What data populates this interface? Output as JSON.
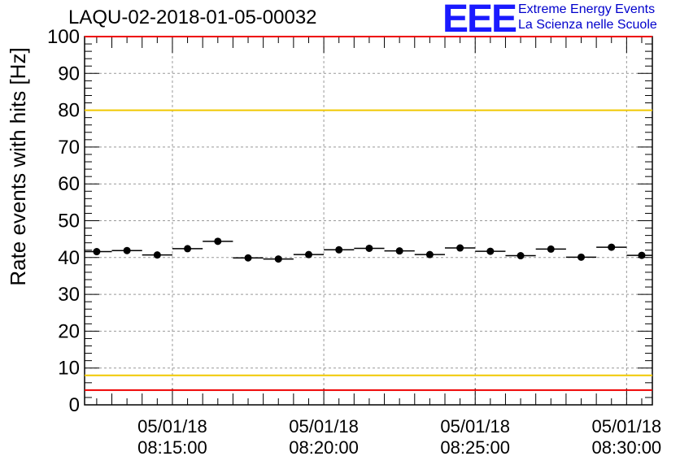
{
  "title": "LAQU-02-2018-01-05-00032",
  "logo": {
    "mark": "EEE",
    "line1": "Extreme Energy Events",
    "line2": "La Scienza nelle Scuole"
  },
  "chart_data": {
    "type": "scatter",
    "title": "LAQU-02-2018-01-05-00032",
    "ylabel": "Rate events with hits [Hz]",
    "xlabel": "",
    "ylim": [
      0,
      100
    ],
    "xlim_minutes": [
      12.1,
      30.85
    ],
    "yticks": [
      0,
      10,
      20,
      30,
      40,
      50,
      60,
      70,
      80,
      90,
      100
    ],
    "xticks": [
      {
        "minute": 15,
        "date": "05/01/18",
        "time": "08:15:00"
      },
      {
        "minute": 20,
        "date": "05/01/18",
        "time": "08:20:00"
      },
      {
        "minute": 25,
        "date": "05/01/18",
        "time": "08:25:00"
      },
      {
        "minute": 30,
        "date": "05/01/18",
        "time": "08:30:00"
      }
    ],
    "grid": true,
    "reference_lines": [
      {
        "y": 100,
        "color": "#ee0000"
      },
      {
        "y": 80,
        "color": "#f0c800"
      },
      {
        "y": 8,
        "color": "#f0c800"
      },
      {
        "y": 4,
        "color": "#ee0000"
      }
    ],
    "series": [
      {
        "x_minutes": [
          12.5,
          13.5,
          14.5,
          15.5,
          16.5,
          17.5,
          18.5,
          19.5,
          20.5,
          21.5,
          22.5,
          23.5,
          24.5,
          25.5,
          26.5,
          27.5,
          28.5,
          29.5,
          30.5
        ],
        "y": [
          41.6,
          41.9,
          40.7,
          42.4,
          44.4,
          39.9,
          39.6,
          40.8,
          42.1,
          42.5,
          41.8,
          40.8,
          42.6,
          41.7,
          40.5,
          42.3,
          40.1,
          42.8,
          40.6
        ],
        "xerr_minutes": 0.5,
        "color": "#000000"
      }
    ]
  }
}
